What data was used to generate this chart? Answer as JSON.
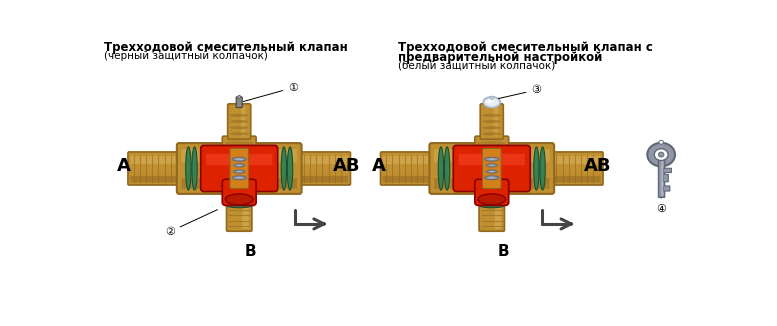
{
  "title1_line1": "Трехходовой смесительный клапан",
  "title1_line2": "(черный защитный колпачок)",
  "title2_line1": "Трехходовой смесительный клапан с",
  "title2_line2": "предварительной настройкой",
  "title2_line3": "(белый защитный колпачок)",
  "label_A1": "А",
  "label_AB1": "АВ",
  "label_B1": "В",
  "label_A2": "А",
  "label_AB2": "АВ",
  "label_B2": "В",
  "num1": "①",
  "num2": "②",
  "num3": "③",
  "num4": "④",
  "bg_color": "#ffffff",
  "brass_light": "#d4aa50",
  "brass_mid": "#c09030",
  "brass_dark": "#906820",
  "brass_shadow": "#7a5510",
  "red_bright": "#dd2200",
  "red_mid": "#bb1800",
  "red_dark": "#880000",
  "green_seal": "#3a8050",
  "green_seal_dark": "#1a5030",
  "gray_light": "#c8ccd4",
  "gray_mid": "#9098a8",
  "gray_dark": "#606878",
  "white_cap_light": "#e8eef4",
  "white_cap_mid": "#c0ccd8",
  "white_cap_dark": "#90a0b0",
  "orange_inner": "#d4801a",
  "stem_gray": "#b0a060"
}
